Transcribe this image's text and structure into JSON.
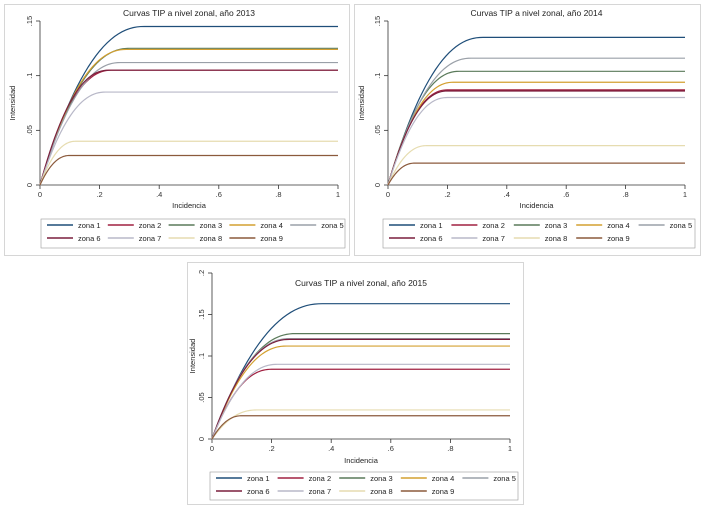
{
  "chart_data": [
    {
      "type": "line",
      "title": "Curvas TIP a nivel zonal, año 2013",
      "xlabel": "Incidencia",
      "ylabel": "Intensidad",
      "xlim": [
        0,
        1
      ],
      "ylim": [
        0,
        0.15
      ],
      "x_ticks": [
        0,
        0.2,
        0.4,
        0.6,
        0.8,
        1
      ],
      "x_tick_labels": [
        "0",
        ".2",
        ".4",
        ".6",
        ".8",
        "1"
      ],
      "y_ticks": [
        0,
        0.05,
        0.1,
        0.15
      ],
      "y_tick_labels": [
        "0",
        ".05",
        ".1",
        ".15"
      ],
      "grid": false,
      "legend_position": "bottom",
      "series": [
        {
          "name": "zona 1",
          "color": "#1f4e79",
          "x": [
            0,
            0.35,
            1
          ],
          "y": [
            0,
            0.145,
            0.145
          ]
        },
        {
          "name": "zona 2",
          "color": "#a02040",
          "x": [
            0,
            0.24,
            1
          ],
          "y": [
            0,
            0.105,
            0.105
          ]
        },
        {
          "name": "zona 3",
          "color": "#5a7a5a",
          "x": [
            0,
            0.3,
            1
          ],
          "y": [
            0,
            0.125,
            0.125
          ]
        },
        {
          "name": "zona 4",
          "color": "#d4a030",
          "x": [
            0,
            0.29,
            1
          ],
          "y": [
            0,
            0.124,
            0.124
          ]
        },
        {
          "name": "zona 5",
          "color": "#9aa0a8",
          "x": [
            0,
            0.27,
            1
          ],
          "y": [
            0,
            0.112,
            0.112
          ]
        },
        {
          "name": "zona 6",
          "color": "#7a1f3d",
          "x": [
            0,
            0.23,
            1
          ],
          "y": [
            0,
            0.105,
            0.105
          ]
        },
        {
          "name": "zona 7",
          "color": "#b8b8c8",
          "x": [
            0,
            0.22,
            1
          ],
          "y": [
            0,
            0.085,
            0.085
          ]
        },
        {
          "name": "zona 8",
          "color": "#e6dcb0",
          "x": [
            0,
            0.12,
            1
          ],
          "y": [
            0,
            0.04,
            0.04
          ]
        },
        {
          "name": "zona 9",
          "color": "#8b5a3c",
          "x": [
            0,
            0.1,
            1
          ],
          "y": [
            0,
            0.027,
            0.027
          ]
        }
      ]
    },
    {
      "type": "line",
      "title": "Curvas TIP a nivel zonal, año 2014",
      "xlabel": "Incidencia",
      "ylabel": "Intensidad",
      "xlim": [
        0,
        1
      ],
      "ylim": [
        0,
        0.15
      ],
      "x_ticks": [
        0,
        0.2,
        0.4,
        0.6,
        0.8,
        1
      ],
      "x_tick_labels": [
        "0",
        ".2",
        ".4",
        ".6",
        ".8",
        "1"
      ],
      "y_ticks": [
        0,
        0.05,
        0.1,
        0.15
      ],
      "y_tick_labels": [
        "0",
        ".05",
        ".1",
        ".15"
      ],
      "grid": false,
      "legend_position": "bottom",
      "series": [
        {
          "name": "zona 1",
          "color": "#1f4e79",
          "x": [
            0,
            0.32,
            1
          ],
          "y": [
            0,
            0.135,
            0.135
          ]
        },
        {
          "name": "zona 2",
          "color": "#a02040",
          "x": [
            0,
            0.2,
            1
          ],
          "y": [
            0,
            0.087,
            0.087
          ]
        },
        {
          "name": "zona 3",
          "color": "#5a7a5a",
          "x": [
            0,
            0.24,
            1
          ],
          "y": [
            0,
            0.104,
            0.104
          ]
        },
        {
          "name": "zona 4",
          "color": "#d4a030",
          "x": [
            0,
            0.22,
            1
          ],
          "y": [
            0,
            0.094,
            0.094
          ]
        },
        {
          "name": "zona 5",
          "color": "#9aa0a8",
          "x": [
            0,
            0.28,
            1
          ],
          "y": [
            0,
            0.116,
            0.116
          ]
        },
        {
          "name": "zona 6",
          "color": "#7a1f3d",
          "x": [
            0,
            0.2,
            1
          ],
          "y": [
            0,
            0.086,
            0.086
          ]
        },
        {
          "name": "zona 7",
          "color": "#b8b8c8",
          "x": [
            0,
            0.2,
            1
          ],
          "y": [
            0,
            0.08,
            0.08
          ]
        },
        {
          "name": "zona 8",
          "color": "#e6dcb0",
          "x": [
            0,
            0.13,
            1
          ],
          "y": [
            0,
            0.036,
            0.036
          ]
        },
        {
          "name": "zona 9",
          "color": "#8b5a3c",
          "x": [
            0,
            0.09,
            1
          ],
          "y": [
            0,
            0.02,
            0.02
          ]
        }
      ]
    },
    {
      "type": "line",
      "title": "Curvas TIP a nivel zonal, año 2015",
      "xlabel": "Incidencia",
      "ylabel": "Intensidad",
      "xlim": [
        0,
        1
      ],
      "ylim": [
        0,
        0.2
      ],
      "x_ticks": [
        0,
        0.2,
        0.4,
        0.6,
        0.8,
        1
      ],
      "x_tick_labels": [
        "0",
        ".2",
        ".4",
        ".6",
        ".8",
        "1"
      ],
      "y_ticks": [
        0,
        0.05,
        0.1,
        0.15,
        0.2
      ],
      "y_tick_labels": [
        "0",
        ".05",
        ".1",
        ".15",
        ".2"
      ],
      "grid": false,
      "legend_position": "bottom",
      "series": [
        {
          "name": "zona 1",
          "color": "#1f4e79",
          "x": [
            0,
            0.37,
            1
          ],
          "y": [
            0,
            0.163,
            0.163
          ]
        },
        {
          "name": "zona 2",
          "color": "#a02040",
          "x": [
            0,
            0.2,
            1
          ],
          "y": [
            0,
            0.084,
            0.084
          ]
        },
        {
          "name": "zona 3",
          "color": "#5a7a5a",
          "x": [
            0,
            0.28,
            1
          ],
          "y": [
            0,
            0.127,
            0.127
          ]
        },
        {
          "name": "zona 4",
          "color": "#d4a030",
          "x": [
            0,
            0.25,
            1
          ],
          "y": [
            0,
            0.112,
            0.112
          ]
        },
        {
          "name": "zona 5",
          "color": "#9aa0a8",
          "x": [
            0,
            0.26,
            1
          ],
          "y": [
            0,
            0.121,
            0.121
          ]
        },
        {
          "name": "zona 6",
          "color": "#7a1f3d",
          "x": [
            0,
            0.26,
            1
          ],
          "y": [
            0,
            0.12,
            0.12
          ]
        },
        {
          "name": "zona 7",
          "color": "#b8b8c8",
          "x": [
            0,
            0.22,
            1
          ],
          "y": [
            0,
            0.09,
            0.09
          ]
        },
        {
          "name": "zona 8",
          "color": "#e6dcb0",
          "x": [
            0,
            0.15,
            1
          ],
          "y": [
            0,
            0.035,
            0.035
          ]
        },
        {
          "name": "zona 9",
          "color": "#8b5a3c",
          "x": [
            0,
            0.1,
            1
          ],
          "y": [
            0,
            0.028,
            0.028
          ]
        }
      ]
    }
  ]
}
